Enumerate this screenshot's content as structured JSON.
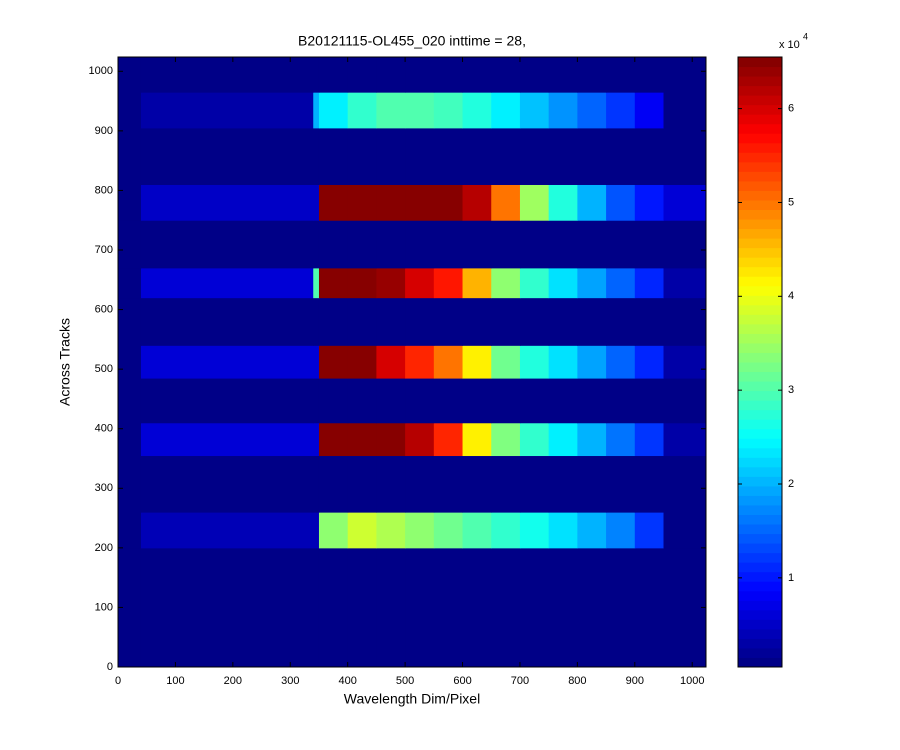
{
  "chart_data": {
    "type": "heatmap",
    "title": "B20121115-OL455_020 inttime = 28,",
    "xlabel": "Wavelength Dim/Pixel",
    "ylabel": "Across Tracks",
    "xlim": [
      0,
      1024
    ],
    "ylim": [
      0,
      1024
    ],
    "xticks": [
      0,
      100,
      200,
      300,
      400,
      500,
      600,
      700,
      800,
      900,
      1000
    ],
    "yticks": [
      0,
      100,
      200,
      300,
      400,
      500,
      600,
      700,
      800,
      900,
      1000
    ],
    "colormap": "jet",
    "clim": [
      0.05,
      6.55
    ],
    "cticks": [
      1,
      2,
      3,
      4,
      5,
      6
    ],
    "cscale_label": "x 10",
    "cscale_exponent": "4",
    "x_bins": [
      0,
      40,
      340,
      350,
      400,
      450,
      500,
      550,
      600,
      650,
      700,
      750,
      800,
      850,
      900,
      950,
      1024
    ],
    "y_bins": [
      0,
      200,
      260,
      355,
      410,
      485,
      540,
      620,
      670,
      750,
      810,
      905,
      965,
      1024
    ],
    "values": [
      [
        0.1,
        0.1,
        0.1,
        0.1,
        0.1,
        0.1,
        0.1,
        0.1,
        0.1,
        0.1,
        0.1,
        0.1,
        0.1,
        0.1,
        0.1,
        0.1
      ],
      [
        0.1,
        0.4,
        0.4,
        3.4,
        3.8,
        3.6,
        3.4,
        3.2,
        3.0,
        2.8,
        2.6,
        2.3,
        2.0,
        1.7,
        1.2,
        0.1
      ],
      [
        0.1,
        0.1,
        0.1,
        0.1,
        0.1,
        0.1,
        0.1,
        0.1,
        0.1,
        0.1,
        0.1,
        0.1,
        0.1,
        0.1,
        0.1,
        0.1
      ],
      [
        0.1,
        0.6,
        0.6,
        6.5,
        6.5,
        6.5,
        6.2,
        5.5,
        4.2,
        3.3,
        2.8,
        2.4,
        2.0,
        1.6,
        1.2,
        0.3
      ],
      [
        0.1,
        0.1,
        0.1,
        0.1,
        0.1,
        0.1,
        0.1,
        0.1,
        0.1,
        0.1,
        0.1,
        0.1,
        0.1,
        0.1,
        0.1,
        0.1
      ],
      [
        0.1,
        0.6,
        0.6,
        6.5,
        6.5,
        6.0,
        5.5,
        5.0,
        4.2,
        3.2,
        2.7,
        2.3,
        1.9,
        1.5,
        1.1,
        0.3
      ],
      [
        0.1,
        0.1,
        0.1,
        0.1,
        0.1,
        0.1,
        0.1,
        0.1,
        0.1,
        0.1,
        0.1,
        0.1,
        0.1,
        0.1,
        0.1,
        0.1
      ],
      [
        0.1,
        0.6,
        3.0,
        6.5,
        6.5,
        6.4,
        6.0,
        5.6,
        4.6,
        3.4,
        2.8,
        2.3,
        1.9,
        1.5,
        1.1,
        0.3
      ],
      [
        0.1,
        0.1,
        0.1,
        0.1,
        0.1,
        0.1,
        0.1,
        0.1,
        0.1,
        0.1,
        0.1,
        0.1,
        0.1,
        0.1,
        0.1,
        0.1
      ],
      [
        0.1,
        0.5,
        0.5,
        6.5,
        6.5,
        6.5,
        6.5,
        6.5,
        6.2,
        5.0,
        3.5,
        2.7,
        2.0,
        1.4,
        1.0,
        0.6
      ],
      [
        0.1,
        0.1,
        0.1,
        0.1,
        0.1,
        0.1,
        0.1,
        0.1,
        0.1,
        0.1,
        0.1,
        0.1,
        0.1,
        0.1,
        0.1,
        0.1
      ],
      [
        0.1,
        0.3,
        2.0,
        2.4,
        2.8,
        3.0,
        3.0,
        2.9,
        2.7,
        2.4,
        2.1,
        1.8,
        1.5,
        1.2,
        0.8,
        0.1
      ],
      [
        0.1,
        0.1,
        0.1,
        0.1,
        0.1,
        0.1,
        0.1,
        0.1,
        0.1,
        0.1,
        0.1,
        0.1,
        0.1,
        0.1,
        0.1,
        0.1
      ]
    ]
  }
}
